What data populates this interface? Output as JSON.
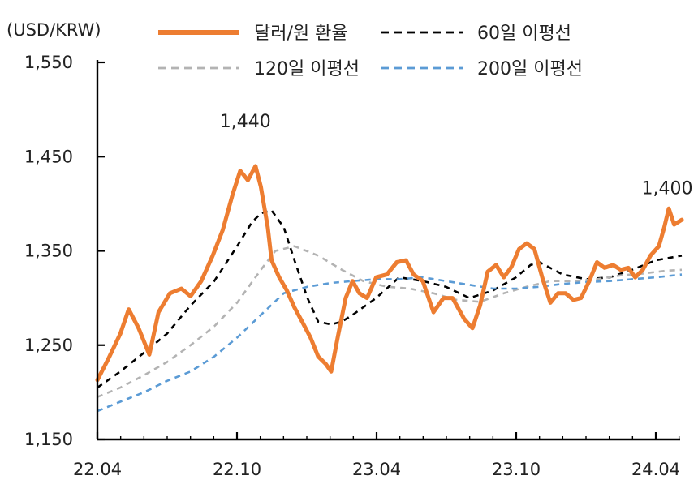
{
  "chart_data": {
    "type": "line",
    "unit_label": "(USD/KRW)",
    "y_ticks": [
      "1,150",
      "1,250",
      "1,350",
      "1,450",
      "1,550"
    ],
    "ylim": [
      1150,
      1550
    ],
    "x_ticks": [
      "22.04",
      "22.10",
      "23.04",
      "23.10",
      "24.04"
    ],
    "xlim": [
      "2022-04",
      "2024-04"
    ],
    "grid": false,
    "legend_position": "top",
    "annotations": [
      {
        "text": "1,440",
        "x": "2022-10",
        "y": 1440
      },
      {
        "text": "1,400",
        "x": "2024-04",
        "y": 1400
      }
    ],
    "series": [
      {
        "name": "달러/원 환율",
        "color": "#ED7D31",
        "style": "solid",
        "points": [
          [
            "2022-04-01",
            1213
          ],
          [
            "2022-04-15",
            1235
          ],
          [
            "2022-05-01",
            1262
          ],
          [
            "2022-05-12",
            1288
          ],
          [
            "2022-05-25",
            1268
          ],
          [
            "2022-06-08",
            1240
          ],
          [
            "2022-06-20",
            1285
          ],
          [
            "2022-07-05",
            1305
          ],
          [
            "2022-07-20",
            1310
          ],
          [
            "2022-08-01",
            1302
          ],
          [
            "2022-08-15",
            1318
          ],
          [
            "2022-08-30",
            1345
          ],
          [
            "2022-09-12",
            1372
          ],
          [
            "2022-09-25",
            1410
          ],
          [
            "2022-10-05",
            1435
          ],
          [
            "2022-10-15",
            1425
          ],
          [
            "2022-10-25",
            1440
          ],
          [
            "2022-11-01",
            1418
          ],
          [
            "2022-11-10",
            1375
          ],
          [
            "2022-11-15",
            1340
          ],
          [
            "2022-11-25",
            1322
          ],
          [
            "2022-12-05",
            1308
          ],
          [
            "2022-12-15",
            1290
          ],
          [
            "2022-12-25",
            1275
          ],
          [
            "2023-01-05",
            1258
          ],
          [
            "2023-01-15",
            1238
          ],
          [
            "2023-01-25",
            1230
          ],
          [
            "2023-02-01",
            1222
          ],
          [
            "2023-02-10",
            1260
          ],
          [
            "2023-02-20",
            1300
          ],
          [
            "2023-03-01",
            1318
          ],
          [
            "2023-03-10",
            1305
          ],
          [
            "2023-03-20",
            1300
          ],
          [
            "2023-04-01",
            1322
          ],
          [
            "2023-04-15",
            1325
          ],
          [
            "2023-04-28",
            1338
          ],
          [
            "2023-05-10",
            1340
          ],
          [
            "2023-05-20",
            1325
          ],
          [
            "2023-06-01",
            1318
          ],
          [
            "2023-06-15",
            1285
          ],
          [
            "2023-06-28",
            1300
          ],
          [
            "2023-07-10",
            1300
          ],
          [
            "2023-07-25",
            1278
          ],
          [
            "2023-08-05",
            1268
          ],
          [
            "2023-08-15",
            1292
          ],
          [
            "2023-08-25",
            1328
          ],
          [
            "2023-09-05",
            1335
          ],
          [
            "2023-09-15",
            1322
          ],
          [
            "2023-09-25",
            1333
          ],
          [
            "2023-10-05",
            1352
          ],
          [
            "2023-10-15",
            1358
          ],
          [
            "2023-10-25",
            1352
          ],
          [
            "2023-11-05",
            1320
          ],
          [
            "2023-11-15",
            1295
          ],
          [
            "2023-11-25",
            1305
          ],
          [
            "2023-12-05",
            1305
          ],
          [
            "2023-12-15",
            1298
          ],
          [
            "2023-12-25",
            1300
          ],
          [
            "2024-01-05",
            1318
          ],
          [
            "2024-01-15",
            1338
          ],
          [
            "2024-01-25",
            1332
          ],
          [
            "2024-02-05",
            1335
          ],
          [
            "2024-02-15",
            1330
          ],
          [
            "2024-02-25",
            1332
          ],
          [
            "2024-03-05",
            1322
          ],
          [
            "2024-03-15",
            1330
          ],
          [
            "2024-03-25",
            1345
          ],
          [
            "2024-04-05",
            1355
          ],
          [
            "2024-04-12",
            1375
          ],
          [
            "2024-04-18",
            1395
          ],
          [
            "2024-04-25",
            1378
          ],
          [
            "2024-05-05",
            1383
          ]
        ]
      },
      {
        "name": "60일 이평선",
        "color": "#000000",
        "style": "dashed",
        "points": [
          [
            "2022-04-01",
            1205
          ],
          [
            "2022-05-01",
            1222
          ],
          [
            "2022-06-01",
            1242
          ],
          [
            "2022-07-01",
            1262
          ],
          [
            "2022-08-01",
            1292
          ],
          [
            "2022-09-01",
            1318
          ],
          [
            "2022-10-01",
            1355
          ],
          [
            "2022-10-20",
            1380
          ],
          [
            "2022-11-01",
            1390
          ],
          [
            "2022-11-15",
            1393
          ],
          [
            "2022-12-01",
            1375
          ],
          [
            "2022-12-15",
            1340
          ],
          [
            "2023-01-01",
            1300
          ],
          [
            "2023-01-15",
            1275
          ],
          [
            "2023-02-01",
            1272
          ],
          [
            "2023-02-15",
            1275
          ],
          [
            "2023-03-01",
            1282
          ],
          [
            "2023-04-01",
            1300
          ],
          [
            "2023-05-01",
            1322
          ],
          [
            "2023-06-01",
            1318
          ],
          [
            "2023-07-01",
            1312
          ],
          [
            "2023-08-01",
            1300
          ],
          [
            "2023-09-01",
            1308
          ],
          [
            "2023-10-01",
            1322
          ],
          [
            "2023-10-20",
            1335
          ],
          [
            "2023-11-01",
            1338
          ],
          [
            "2023-12-01",
            1325
          ],
          [
            "2024-01-01",
            1320
          ],
          [
            "2024-02-01",
            1322
          ],
          [
            "2024-03-01",
            1330
          ],
          [
            "2024-04-01",
            1340
          ],
          [
            "2024-05-05",
            1345
          ]
        ]
      },
      {
        "name": "120일 이평선",
        "color": "#B3B3B3",
        "style": "dashed",
        "points": [
          [
            "2022-04-01",
            1195
          ],
          [
            "2022-05-01",
            1205
          ],
          [
            "2022-06-01",
            1218
          ],
          [
            "2022-07-01",
            1232
          ],
          [
            "2022-08-01",
            1250
          ],
          [
            "2022-09-01",
            1270
          ],
          [
            "2022-10-01",
            1295
          ],
          [
            "2022-11-01",
            1330
          ],
          [
            "2022-11-20",
            1350
          ],
          [
            "2022-12-15",
            1355
          ],
          [
            "2023-01-15",
            1345
          ],
          [
            "2023-02-15",
            1330
          ],
          [
            "2023-03-15",
            1318
          ],
          [
            "2023-04-15",
            1312
          ],
          [
            "2023-05-15",
            1310
          ],
          [
            "2023-06-15",
            1305
          ],
          [
            "2023-07-15",
            1298
          ],
          [
            "2023-08-15",
            1296
          ],
          [
            "2023-09-15",
            1305
          ],
          [
            "2023-10-15",
            1312
          ],
          [
            "2023-11-15",
            1318
          ],
          [
            "2023-12-15",
            1318
          ],
          [
            "2024-01-15",
            1320
          ],
          [
            "2024-02-15",
            1324
          ],
          [
            "2024-03-15",
            1326
          ],
          [
            "2024-04-15",
            1329
          ],
          [
            "2024-05-05",
            1330
          ]
        ]
      },
      {
        "name": "200일 이평선",
        "color": "#5B9BD5",
        "style": "dashed",
        "points": [
          [
            "2022-04-01",
            1180
          ],
          [
            "2022-05-01",
            1190
          ],
          [
            "2022-06-01",
            1200
          ],
          [
            "2022-07-01",
            1212
          ],
          [
            "2022-08-01",
            1222
          ],
          [
            "2022-09-01",
            1238
          ],
          [
            "2022-10-01",
            1258
          ],
          [
            "2022-11-01",
            1282
          ],
          [
            "2022-12-01",
            1305
          ],
          [
            "2023-01-01",
            1312
          ],
          [
            "2023-02-01",
            1316
          ],
          [
            "2023-03-01",
            1318
          ],
          [
            "2023-04-01",
            1320
          ],
          [
            "2023-05-01",
            1320
          ],
          [
            "2023-06-01",
            1322
          ],
          [
            "2023-07-01",
            1318
          ],
          [
            "2023-08-01",
            1314
          ],
          [
            "2023-09-01",
            1310
          ],
          [
            "2023-10-01",
            1310
          ],
          [
            "2023-11-01",
            1312
          ],
          [
            "2023-12-01",
            1315
          ],
          [
            "2024-01-01",
            1317
          ],
          [
            "2024-02-01",
            1318
          ],
          [
            "2024-03-01",
            1320
          ],
          [
            "2024-04-01",
            1322
          ],
          [
            "2024-05-05",
            1325
          ]
        ]
      }
    ]
  }
}
